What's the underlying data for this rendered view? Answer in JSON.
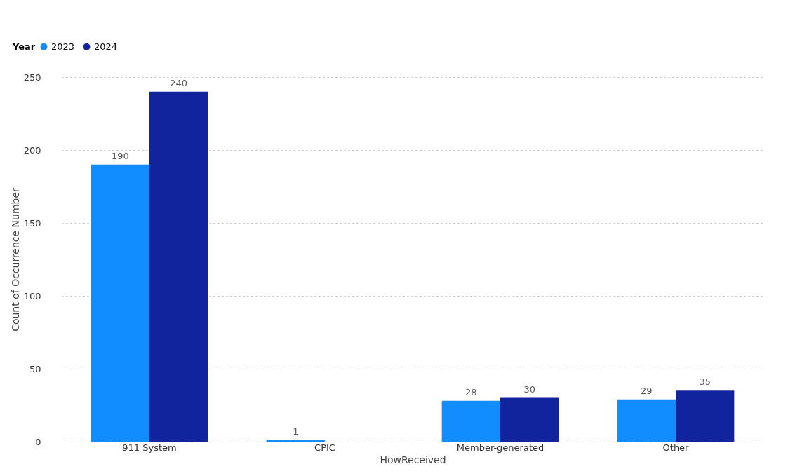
{
  "chart_data": {
    "type": "bar",
    "xlabel": "HowReceived",
    "ylabel": "Count of Occurrence Number",
    "legend_title": "Year",
    "categories": [
      "911 System",
      "CPIC",
      "Member-generated",
      "Other"
    ],
    "series": [
      {
        "name": "2023",
        "color": "#118dff",
        "values": [
          190,
          1,
          28,
          29
        ]
      },
      {
        "name": "2024",
        "color": "#12239e",
        "values": [
          240,
          null,
          30,
          35
        ]
      }
    ],
    "ylim": [
      0,
      250
    ],
    "yticks": [
      0,
      50,
      100,
      150,
      200,
      250
    ],
    "grid": "y",
    "legend": "top left",
    "data_labels": true
  }
}
